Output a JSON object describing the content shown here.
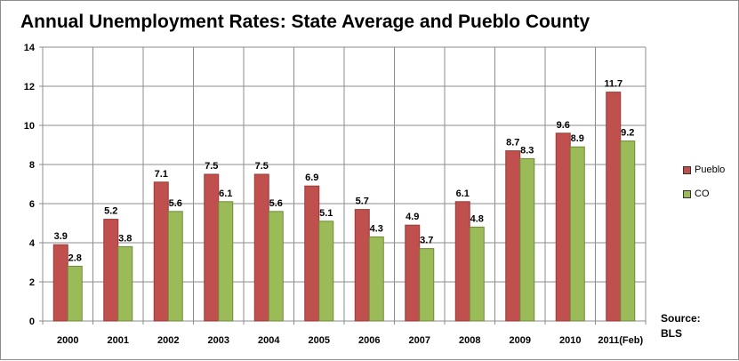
{
  "chart_data": {
    "type": "bar",
    "title": "Annual Unemployment Rates: State Average and Pueblo County",
    "xlabel": "",
    "ylabel": "",
    "ylim": [
      0,
      14
    ],
    "yticks": [
      0,
      2,
      4,
      6,
      8,
      10,
      12,
      14
    ],
    "grid": true,
    "legend_position": "right",
    "categories": [
      "2000",
      "2001",
      "2002",
      "2003",
      "2004",
      "2005",
      "2006",
      "2007",
      "2008",
      "2009",
      "2010",
      "2011(Feb)"
    ],
    "series": [
      {
        "name": "Pueblo",
        "color": "#c0504d",
        "values": [
          3.9,
          5.2,
          7.1,
          7.5,
          7.5,
          6.9,
          5.7,
          4.9,
          6.1,
          8.7,
          9.6,
          11.7
        ]
      },
      {
        "name": "CO",
        "color": "#9bbb59",
        "values": [
          2.8,
          3.8,
          5.6,
          6.1,
          5.6,
          5.1,
          4.3,
          3.7,
          4.8,
          8.3,
          8.9,
          9.2
        ]
      }
    ],
    "source": [
      "Source:",
      "BLS"
    ]
  }
}
